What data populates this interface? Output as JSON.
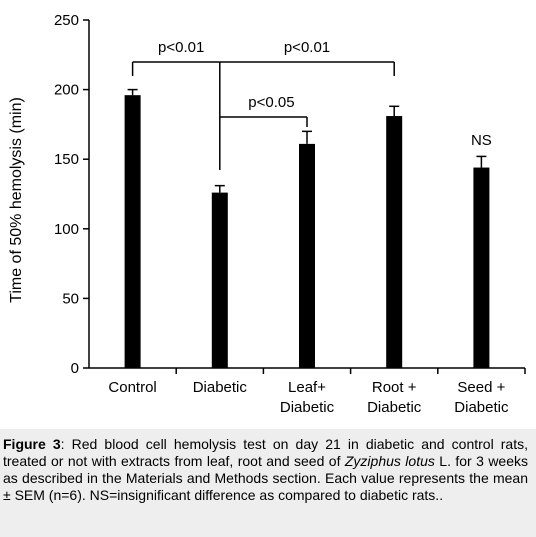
{
  "chart_data": {
    "type": "bar",
    "categories": [
      [
        "Control"
      ],
      [
        "Diabetic"
      ],
      [
        "Leaf+",
        "Diabetic"
      ],
      [
        "Root +",
        "Diabetic"
      ],
      [
        "Seed +",
        "Diabetic"
      ]
    ],
    "values": [
      196,
      126,
      161,
      181,
      144
    ],
    "errors": [
      4,
      5,
      9,
      7,
      8
    ],
    "ylabel": "Time of 50% hemolysis (min)",
    "xlabel": "",
    "ylim": [
      0,
      250
    ],
    "yticks": [
      0,
      50,
      100,
      150,
      200,
      250
    ],
    "bar_color": "#000000",
    "grid": false,
    "annotations": {
      "bracket_control_diabetic": "p<0.01",
      "bracket_diabetic_root": "p<0.01",
      "bracket_diabetic_leaf": "p<0.05",
      "seed_label": "NS"
    }
  },
  "caption": {
    "figure_label": "Figure 3",
    "part1": ": Red blood cell hemolysis test on day 21 in diabetic and control rats, treated or not with extracts from leaf, root and seed of ",
    "species": "Zyziphus lotus",
    "part2": " L. for 3 weeks as described in the Materials and Methods section. Each value represents the mean ± SEM (n=6). NS=insignificant difference as compared to diabetic rats.."
  }
}
